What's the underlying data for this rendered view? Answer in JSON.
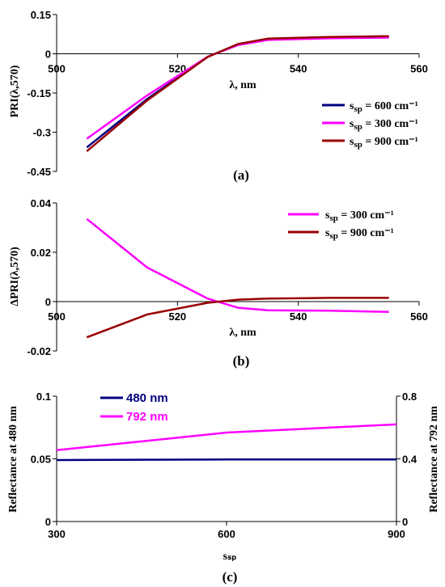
{
  "chart_data": [
    {
      "panel": "a",
      "type": "line",
      "caption": "(a)",
      "xlabel": "λ, nm",
      "ylabel": "PRI(λ,570)",
      "xlim": [
        500,
        560
      ],
      "ylim": [
        -0.45,
        0.15
      ],
      "xticks": [
        "500",
        "520",
        "540",
        "560"
      ],
      "yticks": [
        "0.15",
        "0",
        "-0.15",
        "-0.3",
        "-0.45"
      ],
      "ytick_values": [
        0.15,
        0,
        -0.15,
        -0.3,
        -0.45
      ],
      "xtick_values": [
        500,
        520,
        540,
        560
      ],
      "x": [
        505,
        515,
        525,
        530,
        535,
        545,
        555
      ],
      "legend_position": "right",
      "series": [
        {
          "name": "sₛₚ = 600 cm⁻¹",
          "color": "#000080",
          "values": [
            -0.358,
            -0.173,
            -0.012,
            0.036,
            0.057,
            0.063,
            0.066
          ]
        },
        {
          "name": "sₛₚ = 300 cm⁻¹",
          "color": "#ff00ff",
          "values": [
            -0.325,
            -0.159,
            -0.011,
            0.033,
            0.053,
            0.059,
            0.062
          ]
        },
        {
          "name": "sₛₚ = 900 cm⁻¹",
          "color": "#990000",
          "values": [
            -0.373,
            -0.178,
            -0.012,
            0.037,
            0.058,
            0.064,
            0.067
          ]
        }
      ]
    },
    {
      "panel": "b",
      "type": "line",
      "caption": "(b)",
      "xlabel": "λ, nm",
      "ylabel": "ΔPRI(λ,570)",
      "xlim": [
        500,
        560
      ],
      "ylim": [
        -0.02,
        0.04
      ],
      "xticks": [
        "500",
        "520",
        "540",
        "560"
      ],
      "yticks": [
        "0.04",
        "0.02",
        "0",
        "-0.02"
      ],
      "ytick_values": [
        0.04,
        0.02,
        0,
        -0.02
      ],
      "xtick_values": [
        500,
        520,
        540,
        560
      ],
      "x": [
        505,
        515,
        525,
        530,
        535,
        545,
        555
      ],
      "legend_position": "top-right",
      "series": [
        {
          "name": "sₛₚ = 300 cm⁻¹",
          "color": "#ff00ff",
          "values": [
            0.0335,
            0.0138,
            0.0012,
            -0.0025,
            -0.0035,
            -0.0037,
            -0.0042
          ]
        },
        {
          "name": "sₛₚ = 900 cm⁻¹",
          "color": "#990000",
          "values": [
            -0.0145,
            -0.0052,
            -0.0005,
            0.0008,
            0.0012,
            0.0015,
            0.0015
          ]
        }
      ]
    },
    {
      "panel": "c",
      "type": "line",
      "caption": "(c)",
      "xlabel": "sₛₚ",
      "ylabel": "Reflectance at 480 nm",
      "y2label": "Reflectance at 792 nm",
      "xlim": [
        300,
        900
      ],
      "ylim": [
        0,
        0.1
      ],
      "y2lim": [
        0,
        0.8
      ],
      "xticks": [
        "300",
        "600",
        "900"
      ],
      "xtick_values": [
        300,
        600,
        900
      ],
      "yticks": [
        "0.1",
        "0.05",
        "0"
      ],
      "ytick_values": [
        0.1,
        0.05,
        0
      ],
      "y2ticks": [
        "0.8",
        "0.4",
        "0"
      ],
      "y2tick_values": [
        0.8,
        0.4,
        0
      ],
      "x": [
        300,
        600,
        900
      ],
      "legend_position": "top-left",
      "series": [
        {
          "name": "480 nm",
          "color": "#000080",
          "axis": "left",
          "values": [
            0.049,
            0.0495,
            0.0495
          ]
        },
        {
          "name": "792 nm",
          "color": "#ff00ff",
          "axis": "right",
          "values": [
            0.455,
            0.568,
            0.62
          ]
        }
      ]
    }
  ]
}
